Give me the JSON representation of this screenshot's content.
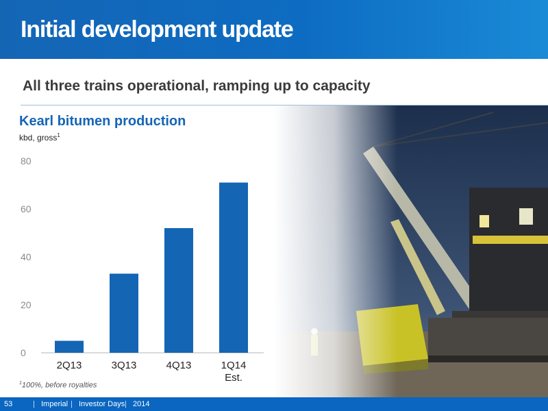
{
  "header": {
    "title": "Initial development update"
  },
  "subtitle": "All three trains operational, ramping up to capacity",
  "chart_data": {
    "type": "bar",
    "title": "Kearl bitumen production",
    "unit_label": "kbd, gross",
    "unit_footnote_ref": "1",
    "categories": [
      "2Q13",
      "3Q13",
      "4Q13",
      "1Q14"
    ],
    "category_sublabels": [
      "",
      "",
      "",
      "Est."
    ],
    "values": [
      5,
      33,
      52,
      71
    ],
    "ylim": [
      0,
      80
    ],
    "yticks": [
      "0",
      "20",
      "40",
      "60",
      "80"
    ],
    "grid": false,
    "bar_color": "#1565b5"
  },
  "footnote": {
    "marker": "1",
    "text": "100%, before royalties"
  },
  "footer": {
    "page": "53",
    "company": "Imperial",
    "event": "Investor Days",
    "year": "2014",
    "separator": "|"
  }
}
